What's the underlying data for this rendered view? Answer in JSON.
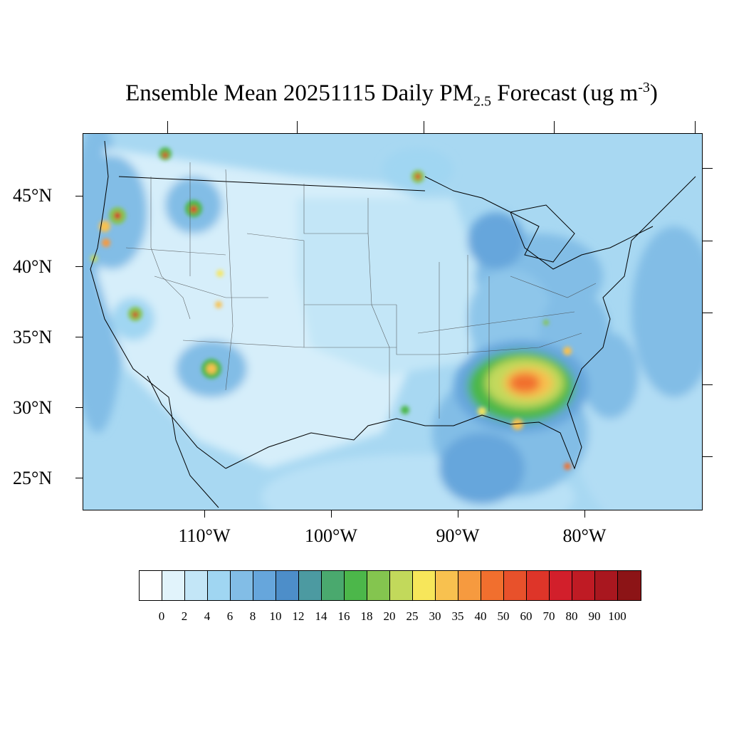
{
  "title": {
    "main": "Ensemble Mean 20251115 Daily PM",
    "sub": "2.5",
    "mid": " Forecast (ug m",
    "sup": "-3",
    "end": ")"
  },
  "lat_labels": [
    "45°N",
    "40°N",
    "35°N",
    "30°N",
    "25°N"
  ],
  "lon_labels": [
    "110°W",
    "100°W",
    "90°W",
    "80°W"
  ],
  "colorbar": {
    "labels": [
      "0",
      "2",
      "4",
      "6",
      "8",
      "10",
      "12",
      "14",
      "16",
      "18",
      "20",
      "25",
      "30",
      "35",
      "40",
      "50",
      "60",
      "70",
      "80",
      "90",
      "100"
    ],
    "colors": [
      "#ffffff",
      "#e1f3fb",
      "#c3e6f7",
      "#a0d6f2",
      "#82bde6",
      "#66a6dc",
      "#4d8ec9",
      "#4c9aa1",
      "#4aa96e",
      "#4cb74a",
      "#84c54f",
      "#c2d95b",
      "#f7e65a",
      "#f8c14f",
      "#f69a3f",
      "#f16f2e",
      "#e8512b",
      "#de3529",
      "#d21f2b",
      "#bf1b24",
      "#a9171f",
      "#8c1416"
    ]
  }
}
